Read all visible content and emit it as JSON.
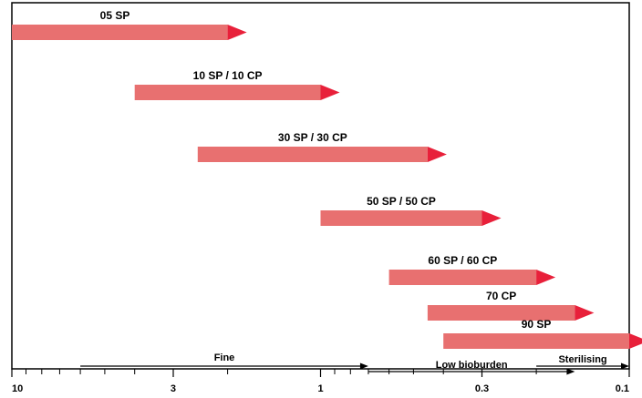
{
  "chart_data": {
    "type": "bar",
    "subtype": "horizontal-range-arrows",
    "x_scale": "log",
    "x_direction": "decreasing",
    "xlim": [
      10,
      0.1
    ],
    "x_tick_labels": [
      {
        "value": 10,
        "label": "10"
      },
      {
        "value": 3,
        "label": "3"
      },
      {
        "value": 1,
        "label": "1"
      },
      {
        "value": 0.3,
        "label": "0.3"
      },
      {
        "value": 0.1,
        "label": "0.1"
      }
    ],
    "x_minor_ticks": [
      9,
      8,
      7,
      6,
      5,
      4,
      2,
      0.9,
      0.8,
      0.7,
      0.6,
      0.5,
      0.4,
      0.2
    ],
    "bar_color": "#e87070",
    "arrowhead_color": "#e8203a",
    "bars": [
      {
        "label": "05 SP",
        "from": 10,
        "to": 2
      },
      {
        "label": "10 SP / 10 CP",
        "from": 4,
        "to": 1
      },
      {
        "label": "30 SP / 30 CP",
        "from": 2.5,
        "to": 0.45
      },
      {
        "label": "50 SP / 50 CP",
        "from": 1,
        "to": 0.3
      },
      {
        "label": "60 SP / 60 CP",
        "from": 0.6,
        "to": 0.2
      },
      {
        "label": "70 CP",
        "from": 0.45,
        "to": 0.15
      },
      {
        "label": "90 SP",
        "from": 0.4,
        "to": 0.1
      }
    ],
    "ranges": [
      {
        "label": "Fine",
        "from": 6,
        "to": 0.7
      },
      {
        "label": "Low bioburden",
        "from": 0.7,
        "to": 0.15
      },
      {
        "label": "Sterilising",
        "from": 0.2,
        "to": 0.1
      }
    ]
  }
}
